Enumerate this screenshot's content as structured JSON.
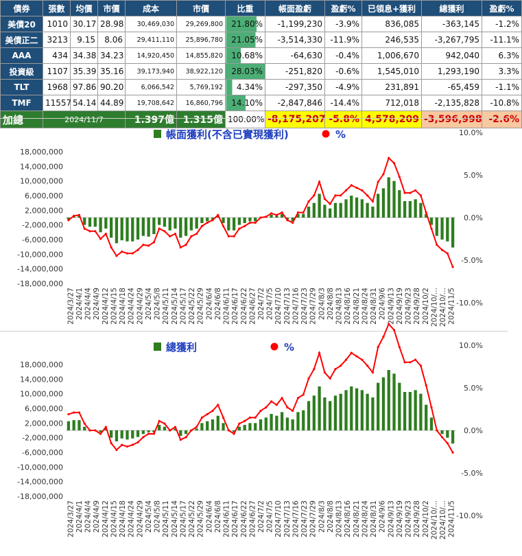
{
  "table": {
    "headers": [
      "債券",
      "張數",
      "均價",
      "市價",
      "成本",
      "市價",
      "比重",
      "帳面盈虧",
      "盈虧%",
      "已領息+獲利",
      "總獲利",
      "盈虧%"
    ],
    "rows": [
      {
        "name": "美債20",
        "qty": "1010",
        "avg": "30.17",
        "price": "28.98",
        "cost": "30,469,030",
        "mkt": "29,269,800",
        "weight": "21.80%",
        "weight_pct": 21.8,
        "pl": "-1,199,230",
        "pl_pct": "-3.9%",
        "income": "836,085",
        "total": "-363,145",
        "total_pct": "-1.2%"
      },
      {
        "name": "美債正二",
        "qty": "3213",
        "avg": "9.15",
        "price": "8.06",
        "cost": "29,411,110",
        "mkt": "25,896,780",
        "weight": "21.05%",
        "weight_pct": 21.05,
        "pl": "-3,514,330",
        "pl_pct": "-11.9%",
        "income": "246,535",
        "total": "-3,267,795",
        "total_pct": "-11.1%"
      },
      {
        "name": "AAA",
        "qty": "434",
        "avg": "34.38",
        "price": "34.23",
        "cost": "14,920,450",
        "mkt": "14,855,820",
        "weight": "10.68%",
        "weight_pct": 10.68,
        "pl": "-64,630",
        "pl_pct": "-0.4%",
        "income": "1,006,670",
        "total": "942,040",
        "total_pct": "6.3%"
      },
      {
        "name": "投資級",
        "qty": "1107",
        "avg": "35.39",
        "price": "35.16",
        "cost": "39,173,940",
        "mkt": "38,922,120",
        "weight": "28.03%",
        "weight_pct": 28.03,
        "pl": "-251,820",
        "pl_pct": "-0.6%",
        "income": "1,545,010",
        "total": "1,293,190",
        "total_pct": "3.3%"
      },
      {
        "name": "TLT",
        "qty": "1968",
        "avg": "97.86",
        "price": "90.20",
        "cost": "6,066,542",
        "mkt": "5,769,192",
        "weight": "4.34%",
        "weight_pct": 4.34,
        "pl": "-297,350",
        "pl_pct": "-4.9%",
        "income": "231,891",
        "total": "-65,459",
        "total_pct": "-1.1%"
      },
      {
        "name": "TMF",
        "qty": "11557",
        "avg": "54.14",
        "price": "44.89",
        "cost": "19,708,642",
        "mkt": "16,860,796",
        "weight": "14.10%",
        "weight_pct": 14.1,
        "pl": "-2,847,846",
        "pl_pct": "-14.4%",
        "income": "712,018",
        "total": "-2,135,828",
        "total_pct": "-10.8%"
      }
    ],
    "total": {
      "label": "加總",
      "date": "2024/11/7",
      "cost": "1.397億",
      "mkt": "1.315億",
      "weight": "100.00%",
      "pl": "-8,175,207",
      "pl_pct": "-5.8%",
      "income": "4,578,209",
      "total": "-3,596,998",
      "total_pct": "-2.6%"
    }
  },
  "colors": {
    "header_bg": "#1f4e79",
    "total_bg": "#2e7d2e",
    "bar": "#2e7d1f",
    "line": "#ff0000",
    "weight_bar": "#4cae76",
    "highlight_yellow": "#ffff00",
    "highlight_peach": "#f8c8a0"
  },
  "chart_data": [
    {
      "type": "bar",
      "title": "",
      "legend": [
        "帳面獲利(不含已實現獲利)",
        "%"
      ],
      "legend_position": "top",
      "x_tick_labels": [
        "2024/3/27",
        "2024/4/1",
        "2024/4/4",
        "2024/4/9",
        "2024/4/12",
        "2024/4/15",
        "2024/4/18",
        "2024/4/24",
        "2024/4/29",
        "2024/5/4",
        "2024/5/8",
        "2024/5/11",
        "2024/5/14",
        "2024/5/17",
        "2024/5/22",
        "2024/5/29",
        "2024/6/4",
        "2024/6/8",
        "2024/6/11",
        "2024/6/17",
        "2024/6/22",
        "2024/6/27",
        "2024/7/2",
        "2024/7/5",
        "2024/7/10",
        "2024/7/13",
        "2024/7/16",
        "2024/7/23",
        "2024/7/29",
        "2024/8/3",
        "2024/8/8",
        "2024/8/13",
        "2024/8/16",
        "2024/8/21",
        "2024/8/24",
        "2024/8/31",
        "2024/9/6",
        "2024/9/13",
        "2024/9/19",
        "2024/9/23",
        "2024/9/28",
        "2024/10/2",
        "2024/10/...",
        "2024/10/...",
        "2024/11/5"
      ],
      "y_left": {
        "min": -18000000,
        "max": 18000000,
        "step": 4000000,
        "labels": [
          "18,000,000",
          "14,000,000",
          "10,000,000",
          "6,000,000",
          "2,000,000",
          "-2,000,000",
          "-6,000,000",
          "-10,000,000",
          "-14,000,000",
          "-18,000,000"
        ]
      },
      "y_right": {
        "min": -10,
        "max": 10,
        "step": 5,
        "labels": [
          "10.0%",
          "5.0%",
          "0.0%",
          "-5.0%",
          "-10.0%"
        ]
      },
      "series": [
        {
          "name": "帳面獲利(不含已實現獲利)",
          "axis": "left",
          "type": "bar",
          "values": [
            -500000,
            300000,
            500000,
            -2000000,
            -2500000,
            -2500000,
            -4000000,
            -3000000,
            -5500000,
            -7000000,
            -6200000,
            -6500000,
            -6500000,
            -6000000,
            -5000000,
            -5200000,
            -4500000,
            -2000000,
            -2500000,
            -3500000,
            -3000000,
            -5500000,
            -5000000,
            -3500000,
            -3000000,
            -1500000,
            -1000000,
            -500000,
            500000,
            -1500000,
            -3500000,
            -3500000,
            -2000000,
            -1500000,
            -1000000,
            -1000000,
            0,
            200000,
            800000,
            500000,
            1000000,
            -500000,
            -1000000,
            1000000,
            1000000,
            3000000,
            4000000,
            6500000,
            3500000,
            2500000,
            4000000,
            4000000,
            5000000,
            6000000,
            5500000,
            5000000,
            4000000,
            3000000,
            6500000,
            8000000,
            11000000,
            10000000,
            7500000,
            4500000,
            4500000,
            5000000,
            4000000,
            1000000,
            -2000000,
            -5000000,
            -6000000,
            -6500000,
            -8175207
          ]
        },
        {
          "name": "%",
          "axis": "right",
          "type": "line",
          "values": [
            -0.3,
            0.2,
            0.3,
            -1.3,
            -1.6,
            -1.6,
            -2.5,
            -1.9,
            -3.5,
            -4.5,
            -4.0,
            -4.2,
            -4.2,
            -3.8,
            -3.2,
            -3.3,
            -2.9,
            -1.3,
            -1.6,
            -2.2,
            -1.9,
            -3.5,
            -3.2,
            -2.2,
            -1.9,
            -1.0,
            -0.6,
            -0.3,
            0.3,
            -1.0,
            -2.2,
            -2.2,
            -1.3,
            -1.0,
            -0.6,
            -0.6,
            0.0,
            0.1,
            0.5,
            0.3,
            0.6,
            -0.3,
            -0.6,
            0.6,
            0.6,
            1.9,
            2.6,
            4.2,
            2.2,
            1.6,
            2.6,
            2.6,
            3.2,
            3.8,
            3.5,
            3.2,
            2.6,
            1.9,
            4.2,
            5.1,
            7.0,
            6.4,
            4.8,
            2.9,
            2.9,
            3.2,
            2.6,
            0.6,
            -1.3,
            -3.2,
            -3.8,
            -4.2,
            -5.8
          ]
        }
      ]
    },
    {
      "type": "bar",
      "title": "",
      "legend": [
        "總獲利",
        "%"
      ],
      "legend_position": "top",
      "x_tick_labels": [
        "2024/3/27",
        "2024/4/1",
        "2024/4/4",
        "2024/4/9",
        "2024/4/12",
        "2024/4/15",
        "2024/4/18",
        "2024/4/24",
        "2024/4/29",
        "2024/5/4",
        "2024/5/8",
        "2024/5/11",
        "2024/5/14",
        "2024/5/17",
        "2024/5/22",
        "2024/5/29",
        "2024/6/4",
        "2024/6/8",
        "2024/6/11",
        "2024/6/17",
        "2024/6/22",
        "2024/6/27",
        "2024/7/2",
        "2024/7/5",
        "2024/7/10",
        "2024/7/13",
        "2024/7/16",
        "2024/7/23",
        "2024/7/29",
        "2024/8/3",
        "2024/8/8",
        "2024/8/13",
        "2024/8/16",
        "2024/8/21",
        "2024/8/24",
        "2024/8/31",
        "2024/9/6",
        "2024/9/13",
        "2024/9/19",
        "2024/9/23",
        "2024/9/28",
        "2024/10/2",
        "2024/10/...",
        "2024/10/...",
        "2024/11/5"
      ],
      "y_left": {
        "min": -18000000,
        "max": 18000000,
        "step": 4000000,
        "labels": [
          "18,000,000",
          "14,000,000",
          "10,000,000",
          "6,000,000",
          "2,000,000",
          "-2,000,000",
          "-6,000,000",
          "-10,000,000",
          "-14,000,000",
          "-18,000,000"
        ]
      },
      "y_right": {
        "min": -10,
        "max": 10,
        "step": 5,
        "labels": [
          "10.0%",
          "5.0%",
          "0.0%",
          "-5.0%",
          "-10.0%"
        ]
      },
      "series": [
        {
          "name": "總獲利",
          "axis": "left",
          "type": "bar",
          "values": [
            2500000,
            2800000,
            2800000,
            1000000,
            0,
            0,
            -500000,
            500000,
            -2000000,
            -3000000,
            -2200000,
            -2500000,
            -2200000,
            -1800000,
            -1000000,
            -500000,
            -500000,
            1500000,
            1000000,
            0,
            500000,
            -1500000,
            -1000000,
            0,
            500000,
            2000000,
            2500000,
            3000000,
            4000000,
            2000000,
            0,
            -500000,
            1000000,
            1500000,
            2000000,
            2000000,
            3000000,
            3500000,
            4500000,
            4000000,
            5000000,
            3500000,
            3000000,
            5000000,
            5500000,
            8000000,
            9500000,
            12000000,
            9000000,
            8000000,
            9500000,
            10000000,
            11000000,
            12000000,
            11500000,
            11000000,
            10000000,
            9000000,
            13000000,
            14500000,
            16500000,
            15500000,
            13000000,
            10500000,
            10500000,
            11000000,
            10000000,
            7000000,
            3500000,
            0,
            -1000000,
            -2000000,
            -3596998
          ]
        },
        {
          "name": "%",
          "axis": "right",
          "type": "line",
          "values": [
            1.9,
            2.1,
            2.1,
            0.8,
            0.0,
            0.0,
            -0.4,
            0.4,
            -1.5,
            -2.3,
            -1.7,
            -1.9,
            -1.7,
            -1.4,
            -0.8,
            -0.4,
            -0.4,
            1.1,
            0.8,
            0.0,
            0.4,
            -1.1,
            -0.8,
            0.0,
            0.4,
            1.5,
            1.9,
            2.3,
            3.0,
            1.5,
            0.0,
            -0.4,
            0.8,
            1.1,
            1.5,
            1.5,
            2.3,
            2.7,
            3.4,
            3.0,
            3.8,
            2.7,
            2.3,
            3.8,
            4.2,
            6.1,
            7.2,
            9.1,
            6.8,
            6.1,
            7.2,
            7.6,
            8.3,
            9.1,
            8.7,
            8.3,
            7.6,
            6.8,
            9.8,
            11.0,
            12.5,
            11.8,
            9.8,
            8.0,
            8.0,
            8.3,
            7.6,
            5.3,
            2.7,
            0.0,
            -0.8,
            -1.5,
            -2.6
          ]
        }
      ]
    }
  ]
}
